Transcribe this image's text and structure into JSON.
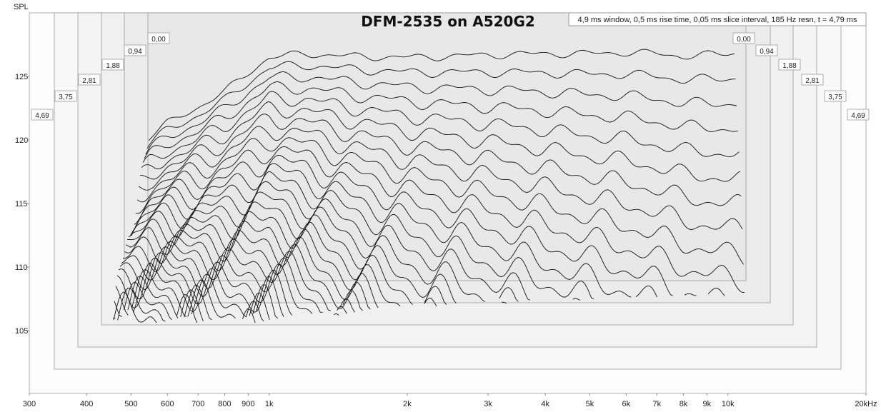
{
  "chart_data": {
    "type": "line",
    "subtype": "cumulative-spectral-decay (waterfall)",
    "title": "DFM-2535 on A520G2",
    "info": "4,9 ms window, 0,5 ms rise time, 0,05 ms slice interval, 185 Hz resn, t = 4,79 ms",
    "ylabel": "SPL",
    "xscale": "log",
    "xlim": [
      300,
      20000
    ],
    "ylim": [
      100,
      130
    ],
    "x_ticks": [
      {
        "value": 300,
        "label": "300"
      },
      {
        "value": 400,
        "label": "400"
      },
      {
        "value": 500,
        "label": "500"
      },
      {
        "value": 600,
        "label": "600"
      },
      {
        "value": 700,
        "label": "700"
      },
      {
        "value": 800,
        "label": "800"
      },
      {
        "value": 900,
        "label": "900"
      },
      {
        "value": 1000,
        "label": "1k"
      },
      {
        "value": 2000,
        "label": "2k"
      },
      {
        "value": 3000,
        "label": "3k"
      },
      {
        "value": 4000,
        "label": "4k"
      },
      {
        "value": 5000,
        "label": "5k"
      },
      {
        "value": 6000,
        "label": "6k"
      },
      {
        "value": 7000,
        "label": "7k"
      },
      {
        "value": 8000,
        "label": "8k"
      },
      {
        "value": 9000,
        "label": "9k"
      },
      {
        "value": 10000,
        "label": "10k"
      },
      {
        "value": 20000,
        "label": "20kHz"
      }
    ],
    "y_ticks": [
      {
        "value": 105,
        "label": "105"
      },
      {
        "value": 110,
        "label": "110"
      },
      {
        "value": 115,
        "label": "115"
      },
      {
        "value": 120,
        "label": "120"
      },
      {
        "value": 125,
        "label": "125"
      }
    ],
    "time_labels_ms": [
      "0,00",
      "0,94",
      "1,88",
      "2,81",
      "3,75",
      "4,69"
    ],
    "slice_interval_ms": 0.05,
    "first_slice": {
      "name": "t = 0,00 ms",
      "x": [
        500,
        550,
        600,
        700,
        800,
        900,
        1000,
        1200,
        1500,
        2000,
        2500,
        3000,
        4000,
        5000,
        6000,
        7000,
        8000,
        9000,
        10000,
        10500
      ],
      "y": [
        118.6,
        120.3,
        121.3,
        122.6,
        123.8,
        125.3,
        126.5,
        126.8,
        126.6,
        126.5,
        126.6,
        126.7,
        126.8,
        126.8,
        126.9,
        126.8,
        126.6,
        126.7,
        126.8,
        126.9
      ]
    }
  }
}
